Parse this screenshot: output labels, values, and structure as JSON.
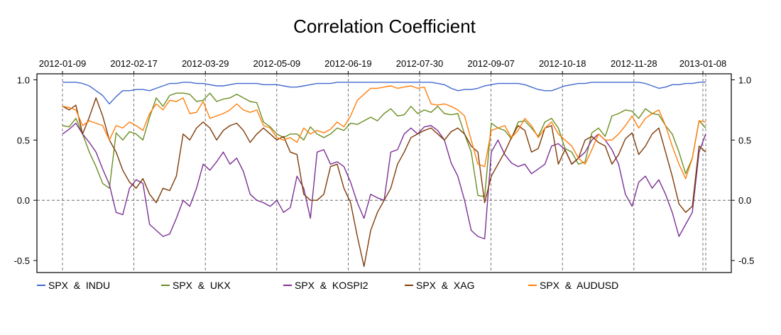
{
  "chart_data": {
    "type": "line",
    "title": "Correlation Coefficient",
    "xlabel": "",
    "ylabel": "",
    "ylim": [
      -0.6,
      1.05
    ],
    "grid": true,
    "legend_position": "bottom",
    "date_ticks": [
      "2012-01-09",
      "2012-02-17",
      "2012-03-29",
      "2012-05-09",
      "2012-06-19",
      "2012-07-30",
      "2012-09-07",
      "2012-10-18",
      "2012-11-28",
      "2013-01-08"
    ],
    "y_ticks": [
      "-0.5",
      "0.0",
      "0.5",
      "1.0"
    ],
    "series": [
      {
        "name": "SPX  &  INDU",
        "color": "#4169cf",
        "values": [
          0.98,
          0.98,
          0.98,
          0.97,
          0.95,
          0.91,
          0.87,
          0.8,
          0.86,
          0.91,
          0.91,
          0.92,
          0.92,
          0.91,
          0.93,
          0.95,
          0.97,
          0.97,
          0.98,
          0.98,
          0.97,
          0.97,
          0.96,
          0.95,
          0.95,
          0.96,
          0.97,
          0.97,
          0.97,
          0.97,
          0.96,
          0.96,
          0.96,
          0.95,
          0.94,
          0.94,
          0.95,
          0.96,
          0.97,
          0.97,
          0.97,
          0.98,
          0.98,
          0.98,
          0.98,
          0.98,
          0.98,
          0.98,
          0.98,
          0.98,
          0.98,
          0.98,
          0.98,
          0.98,
          0.98,
          0.98,
          0.97,
          0.96,
          0.93,
          0.91,
          0.92,
          0.92,
          0.93,
          0.95,
          0.96,
          0.97,
          0.97,
          0.97,
          0.97,
          0.96,
          0.94,
          0.92,
          0.91,
          0.91,
          0.93,
          0.95,
          0.96,
          0.97,
          0.97,
          0.98,
          0.98,
          0.98,
          0.98,
          0.98,
          0.98,
          0.98,
          0.98,
          0.97,
          0.95,
          0.93,
          0.94,
          0.96,
          0.96,
          0.97,
          0.97,
          0.98,
          0.98
        ]
      },
      {
        "name": "SPX  &  UKX",
        "color": "#6b8e23",
        "values": [
          0.62,
          0.61,
          0.68,
          0.55,
          0.4,
          0.28,
          0.14,
          0.1,
          0.56,
          0.5,
          0.57,
          0.55,
          0.5,
          0.69,
          0.85,
          0.78,
          0.87,
          0.89,
          0.89,
          0.88,
          0.82,
          0.83,
          0.89,
          0.82,
          0.84,
          0.85,
          0.88,
          0.85,
          0.82,
          0.81,
          0.65,
          0.61,
          0.55,
          0.52,
          0.55,
          0.55,
          0.5,
          0.61,
          0.55,
          0.52,
          0.55,
          0.6,
          0.58,
          0.64,
          0.63,
          0.66,
          0.69,
          0.66,
          0.72,
          0.76,
          0.7,
          0.71,
          0.78,
          0.72,
          0.75,
          0.73,
          0.78,
          0.72,
          0.71,
          0.72,
          0.55,
          0.4,
          0.04,
          0.03,
          0.64,
          0.6,
          0.58,
          0.51,
          0.65,
          0.66,
          0.6,
          0.53,
          0.65,
          0.68,
          0.6,
          0.43,
          0.4,
          0.3,
          0.32,
          0.56,
          0.6,
          0.53,
          0.7,
          0.72,
          0.75,
          0.74,
          0.68,
          0.76,
          0.72,
          0.71,
          0.62,
          0.55,
          0.4,
          0.22,
          0.35,
          0.66,
          0.6
        ]
      },
      {
        "name": "SPX  &  KOSPI2",
        "color": "#7b3294",
        "values": [
          0.55,
          0.59,
          0.64,
          0.55,
          0.48,
          0.4,
          0.26,
          0.13,
          -0.1,
          -0.12,
          0.1,
          0.17,
          0.14,
          -0.2,
          -0.25,
          -0.3,
          -0.28,
          -0.15,
          0.0,
          -0.05,
          0.1,
          0.3,
          0.25,
          0.32,
          0.4,
          0.3,
          0.35,
          0.24,
          0.05,
          0.0,
          -0.02,
          -0.05,
          0.0,
          -0.1,
          -0.06,
          0.2,
          0.1,
          -0.15,
          0.4,
          0.42,
          0.3,
          0.32,
          0.28,
          0.15,
          -0.02,
          -0.15,
          0.05,
          0.02,
          0.0,
          0.4,
          0.42,
          0.55,
          0.6,
          0.55,
          0.61,
          0.62,
          0.58,
          0.5,
          0.31,
          0.2,
          0.0,
          -0.25,
          -0.3,
          -0.32,
          0.4,
          0.5,
          0.38,
          0.31,
          0.28,
          0.3,
          0.22,
          0.26,
          0.3,
          0.45,
          0.47,
          0.42,
          0.3,
          0.35,
          0.4,
          0.5,
          0.55,
          0.5,
          0.42,
          0.3,
          0.05,
          -0.05,
          0.15,
          0.2,
          0.1,
          0.17,
          0.05,
          -0.1,
          -0.3,
          -0.2,
          -0.1,
          0.4,
          0.55
        ]
      },
      {
        "name": "SPX  &  XAG",
        "color": "#7f3b08",
        "values": [
          0.78,
          0.75,
          0.79,
          0.55,
          0.69,
          0.85,
          0.7,
          0.5,
          0.4,
          0.25,
          0.15,
          0.1,
          0.18,
          0.05,
          -0.02,
          0.1,
          0.08,
          0.2,
          0.55,
          0.5,
          0.6,
          0.65,
          0.6,
          0.5,
          0.58,
          0.62,
          0.64,
          0.58,
          0.48,
          0.55,
          0.6,
          0.55,
          0.5,
          0.53,
          0.4,
          0.38,
          0.05,
          0.0,
          0.0,
          0.05,
          0.28,
          0.3,
          0.1,
          -0.02,
          -0.3,
          -0.55,
          -0.25,
          -0.1,
          0.0,
          0.1,
          0.3,
          0.4,
          0.52,
          0.55,
          0.58,
          0.6,
          0.55,
          0.5,
          0.57,
          0.6,
          0.55,
          0.45,
          0.4,
          -0.02,
          0.2,
          0.3,
          0.4,
          0.52,
          0.62,
          0.58,
          0.4,
          0.43,
          0.6,
          0.62,
          0.3,
          0.42,
          0.3,
          0.35,
          0.5,
          0.53,
          0.48,
          0.45,
          0.3,
          0.38,
          0.51,
          0.56,
          0.38,
          0.45,
          0.55,
          0.6,
          0.4,
          0.2,
          -0.03,
          -0.1,
          -0.05,
          0.45,
          0.4
        ]
      },
      {
        "name": "SPX  &  AUDUSD",
        "color": "#ff7f0e",
        "values": [
          0.78,
          0.77,
          0.75,
          0.62,
          0.66,
          0.64,
          0.62,
          0.5,
          0.62,
          0.6,
          0.65,
          0.62,
          0.58,
          0.72,
          0.8,
          0.75,
          0.83,
          0.82,
          0.85,
          0.72,
          0.73,
          0.82,
          0.68,
          0.7,
          0.72,
          0.75,
          0.8,
          0.75,
          0.73,
          0.75,
          0.62,
          0.6,
          0.52,
          0.5,
          0.52,
          0.48,
          0.6,
          0.55,
          0.58,
          0.56,
          0.59,
          0.65,
          0.61,
          0.7,
          0.83,
          0.88,
          0.93,
          0.93,
          0.94,
          0.95,
          0.93,
          0.94,
          0.95,
          0.93,
          0.94,
          0.8,
          0.79,
          0.8,
          0.78,
          0.75,
          0.7,
          0.5,
          0.3,
          0.28,
          0.58,
          0.6,
          0.62,
          0.52,
          0.58,
          0.68,
          0.62,
          0.52,
          0.6,
          0.65,
          0.55,
          0.5,
          0.45,
          0.35,
          0.3,
          0.42,
          0.55,
          0.5,
          0.5,
          0.55,
          0.62,
          0.7,
          0.6,
          0.68,
          0.72,
          0.75,
          0.62,
          0.45,
          0.3,
          0.18,
          0.35,
          0.66,
          0.65
        ]
      }
    ]
  }
}
